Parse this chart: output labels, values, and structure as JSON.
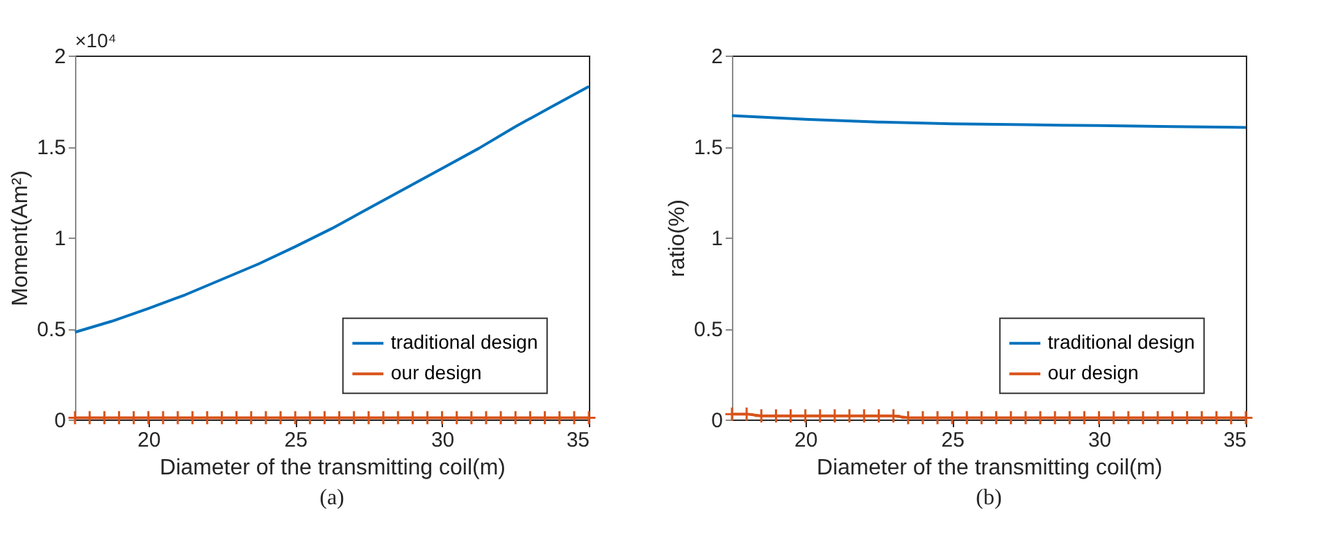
{
  "chart_data": [
    {
      "type": "line",
      "title": "(a)",
      "xlabel": "Diameter of the transmitting coil(m)",
      "ylabel": "Moment(Am²)",
      "annotations": [
        "×10⁴"
      ],
      "x": [
        17.5,
        18.75,
        20,
        21.25,
        22.5,
        23.75,
        25,
        26.25,
        27.5,
        28.75,
        30,
        31.25,
        32.5,
        33.75,
        35
      ],
      "series": [
        {
          "name": "traditional design",
          "color": "#0072bd",
          "marker": "none",
          "values": [
            0.48,
            0.54,
            0.61,
            0.685,
            0.77,
            0.855,
            0.95,
            1.05,
            1.16,
            1.27,
            1.38,
            1.49,
            1.61,
            1.72,
            1.83
          ]
        },
        {
          "name": "our design",
          "color": "#d95319",
          "marker": "cross",
          "x": [
            17.5,
            18,
            18.5,
            19,
            19.5,
            20,
            20.5,
            21,
            21.5,
            22,
            22.5,
            23,
            23.5,
            24,
            24.5,
            25,
            25.5,
            26,
            26.5,
            27,
            27.5,
            28,
            28.5,
            29,
            29.5,
            30,
            30.5,
            31,
            31.5,
            32,
            32.5,
            33,
            33.5,
            34,
            34.5,
            35
          ],
          "values": [
            0.01,
            0.01,
            0.01,
            0.01,
            0.01,
            0.01,
            0.01,
            0.01,
            0.01,
            0.01,
            0.01,
            0.01,
            0.01,
            0.01,
            0.01,
            0.01,
            0.01,
            0.01,
            0.01,
            0.01,
            0.01,
            0.01,
            0.01,
            0.01,
            0.01,
            0.01,
            0.01,
            0.01,
            0.01,
            0.01,
            0.01,
            0.01,
            0.01,
            0.01,
            0.01,
            0.01
          ]
        }
      ],
      "xlim": [
        17.5,
        35
      ],
      "xticks": [
        20,
        25,
        30,
        35
      ],
      "ylim": [
        0,
        2
      ],
      "yticks": [
        0,
        0.5,
        1,
        1.5,
        2
      ],
      "grid": false,
      "legend": "bottom right",
      "line_style": "solid"
    },
    {
      "type": "line",
      "title": "(b)",
      "xlabel": "Diameter of the transmitting coil(m)",
      "ylabel": "ratio(%)",
      "x": [
        17.5,
        20,
        22.5,
        25,
        27.5,
        30,
        32.5,
        35
      ],
      "series": [
        {
          "name": "traditional design",
          "color": "#0072bd",
          "marker": "none",
          "values": [
            1.67,
            1.65,
            1.635,
            1.625,
            1.62,
            1.615,
            1.61,
            1.605
          ]
        },
        {
          "name": "our design",
          "color": "#d95319",
          "marker": "cross",
          "x": [
            17.5,
            18,
            18.5,
            19,
            19.5,
            20,
            20.5,
            21,
            21.5,
            22,
            22.5,
            23,
            23.5,
            24,
            24.5,
            25,
            25.5,
            26,
            26.5,
            27,
            27.5,
            28,
            28.5,
            29,
            29.5,
            30,
            30.5,
            31,
            31.5,
            32,
            32.5,
            33,
            33.5,
            34,
            34.5,
            35
          ],
          "values": [
            0.03,
            0.03,
            0.02,
            0.02,
            0.02,
            0.02,
            0.02,
            0.02,
            0.02,
            0.02,
            0.02,
            0.02,
            0.01,
            0.01,
            0.01,
            0.01,
            0.01,
            0.01,
            0.01,
            0.01,
            0.01,
            0.01,
            0.01,
            0.01,
            0.01,
            0.01,
            0.01,
            0.01,
            0.01,
            0.01,
            0.01,
            0.01,
            0.01,
            0.01,
            0.01,
            0.01
          ]
        }
      ],
      "xlim": [
        17.5,
        35
      ],
      "xticks": [
        20,
        25,
        30,
        35
      ],
      "ylim": [
        0,
        2
      ],
      "yticks": [
        0,
        0.5,
        1,
        1.5,
        2
      ],
      "grid": false,
      "legend": "bottom right",
      "line_style": "solid"
    }
  ]
}
